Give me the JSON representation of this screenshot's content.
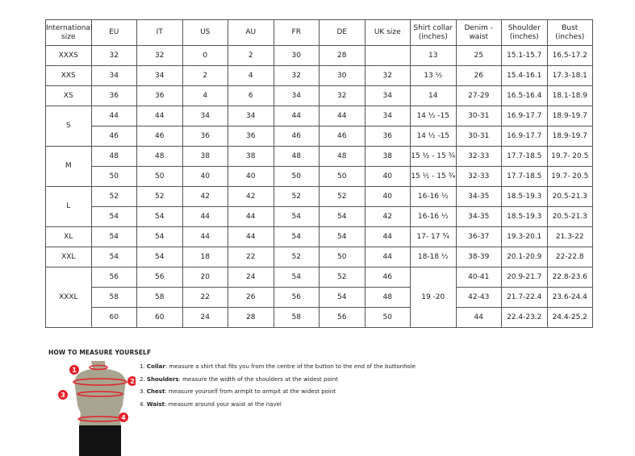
{
  "headers": [
    "International size",
    "EU",
    "IT",
    "US",
    "AU",
    "FR",
    "DE",
    "UK size",
    "Shirt collar (inches)",
    "Denim - waist",
    "Shoulder (inches)",
    "Bust (inches)"
  ],
  "groups": [
    {
      "size": "XXXS",
      "rows": [
        [
          "32",
          "32",
          "0",
          "2",
          "30",
          "28",
          "",
          "13",
          "25",
          "15.1-15.7",
          "16.5-17.2"
        ]
      ]
    },
    {
      "size": "XXS",
      "rows": [
        [
          "34",
          "34",
          "2",
          "4",
          "32",
          "30",
          "32",
          "13 ½",
          "26",
          "15.4-16.1",
          "17.3-18.1"
        ]
      ]
    },
    {
      "size": "XS",
      "rows": [
        [
          "36",
          "36",
          "4",
          "6",
          "34",
          "32",
          "34",
          "14",
          "27-29",
          "16.5-16.4",
          "18.1-18.9"
        ]
      ]
    },
    {
      "size": "S",
      "rows": [
        [
          "44",
          "44",
          "34",
          "34",
          "44",
          "44",
          "34",
          "14 ½ -15",
          "30-31",
          "16.9-17.7",
          "18.9-19.7"
        ],
        [
          "46",
          "46",
          "36",
          "36",
          "46",
          "46",
          "36",
          "14 ½ -15",
          "30-31",
          "16.9-17.7",
          "18.9-19.7"
        ]
      ]
    },
    {
      "size": "M",
      "rows": [
        [
          "48",
          "48",
          "38",
          "38",
          "48",
          "48",
          "38",
          "15 ½ - 15 ¾",
          "32-33",
          "17.7-18.5",
          "19.7- 20.5"
        ],
        [
          "50",
          "50",
          "40",
          "40",
          "50",
          "50",
          "40",
          "15 ½ - 15 ¾",
          "32-33",
          "17.7-18.5",
          "19.7- 20.5"
        ]
      ]
    },
    {
      "size": "L",
      "rows": [
        [
          "52",
          "52",
          "42",
          "42",
          "52",
          "52",
          "40",
          "16-16 ½",
          "34-35",
          "18.5-19.3",
          "20.5-21.3"
        ],
        [
          "54",
          "54",
          "44",
          "44",
          "54",
          "54",
          "42",
          "16-16 ½",
          "34-35",
          "18.5-19.3",
          "20.5-21.3"
        ]
      ]
    },
    {
      "size": "XL",
      "rows": [
        [
          "54",
          "54",
          "44",
          "44",
          "54",
          "54",
          "44",
          "17- 17 ¾",
          "36-37",
          "19.3-20.1",
          "21.3-22"
        ]
      ]
    },
    {
      "size": "XXL",
      "rows": [
        [
          "54",
          "54",
          "18",
          "22",
          "52",
          "50",
          "44",
          "18-18 ½",
          "38-39",
          "20.1-20.9",
          "22-22.8"
        ]
      ]
    },
    {
      "size": "XXXL",
      "rows": [
        [
          "56",
          "56",
          "20",
          "24",
          "54",
          "52",
          "46",
          "19 -20",
          "40-41",
          "20.9-21.7",
          "22.8-23.6"
        ],
        [
          "58",
          "58",
          "22",
          "26",
          "56",
          "54",
          "48",
          null,
          "42-43",
          "21.7-22.4",
          "23.6-24.4"
        ],
        [
          "60",
          "60",
          "24",
          "28",
          "58",
          "56",
          "50",
          null,
          "44",
          "22.4-23.2",
          "24.4-25.2"
        ]
      ]
    }
  ],
  "howto": {
    "title": "HOW TO MEASURE YOURSELF",
    "steps": [
      {
        "num": "1.",
        "term": "Collar",
        "text": ": measure a shirt that fits you from the centre of the button to the end of the buttonhole"
      },
      {
        "num": "2.",
        "term": "Shoulders",
        "text": ": measure the width of the shoulders at the widest point"
      },
      {
        "num": "3.",
        "term": "Chest",
        "text": ": measure yourself from armpit to armpit at the widest point"
      },
      {
        "num": "4.",
        "term": "Waist",
        "text": ": measure around your waist at the navel"
      }
    ],
    "markers": [
      "1",
      "2",
      "3",
      "4"
    ]
  },
  "colors": {
    "marker": "#e2202c",
    "torso": "#a9a48f",
    "shorts": "#111111"
  }
}
